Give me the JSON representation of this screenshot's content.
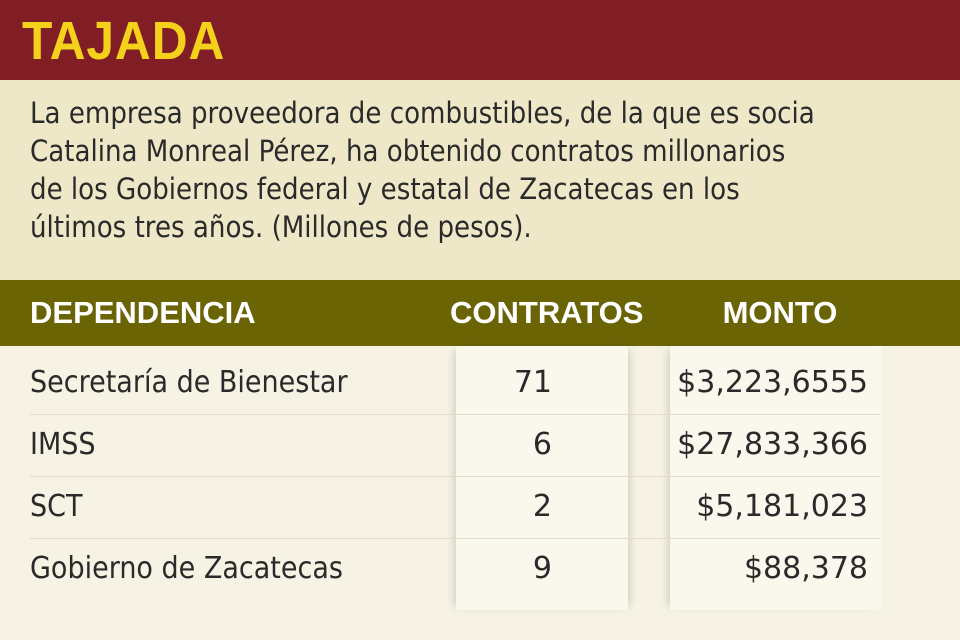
{
  "header": {
    "title": "TAJADA"
  },
  "intro": {
    "text": "La empresa proveedora de combustibles, de la que es socia Catalina Monreal Pérez, ha obtenido contratos millonarios de los Gobiernos federal y estatal de Zacatecas  en los últimos tres años. (Millones de pesos).",
    "lines": [
      "La empresa proveedora de combustibles, de la que es socia",
      "Catalina Monreal Pérez, ha obtenido contratos millonarios",
      "de los Gobiernos federal y estatal de Zacatecas  en los",
      "últimos tres años. (Millones de pesos)."
    ]
  },
  "table": {
    "headers": {
      "dependencia": "DEPENDENCIA",
      "contratos": "CONTRATOS",
      "monto": "MONTO"
    },
    "rows": [
      {
        "dependencia": "Secretaría de Bienestar",
        "contratos": "71",
        "monto": "$3,223,6555"
      },
      {
        "dependencia": "IMSS",
        "contratos": "6",
        "monto": "$27,833,366"
      },
      {
        "dependencia": "SCT",
        "contratos": "2",
        "monto": "$5,181,023"
      },
      {
        "dependencia": "Gobierno de Zacatecas",
        "contratos": "9",
        "monto": "$88,378"
      }
    ]
  },
  "colors": {
    "header_bg": "#811d24",
    "title": "#f4d21b",
    "intro_bg": "#efe8c8",
    "table_header_bg": "#6b6405",
    "body_bg": "#f6f2e4"
  }
}
